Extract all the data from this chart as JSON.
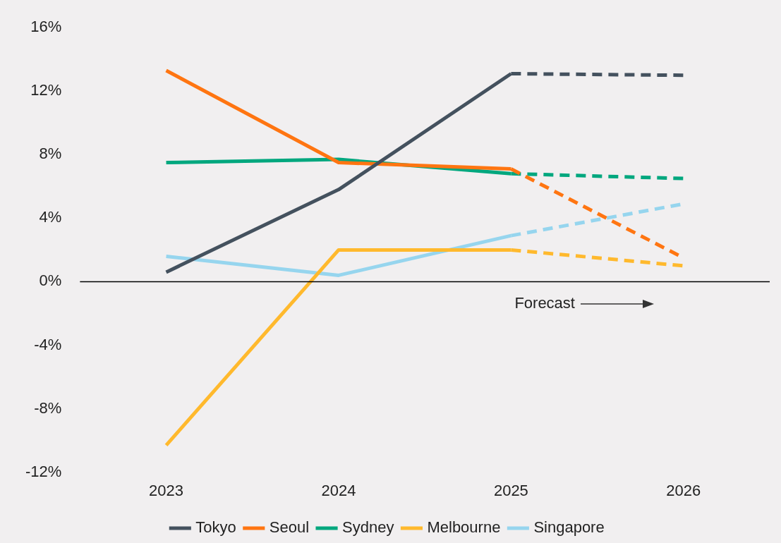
{
  "chart_data": {
    "type": "line",
    "categories": [
      "2023",
      "2024",
      "2025",
      "2026"
    ],
    "series": [
      {
        "name": "Tokyo",
        "color": "#44515e",
        "values": [
          0.6,
          5.8,
          13.1,
          null
        ]
      },
      {
        "name": "Seoul",
        "color": "#ff7511",
        "values": [
          13.3,
          7.5,
          7.1,
          null
        ]
      },
      {
        "name": "Sydney",
        "color": "#00a77e",
        "values": [
          7.5,
          7.7,
          6.8,
          null
        ]
      },
      {
        "name": "Melbourne",
        "color": "#ffb92d",
        "values": [
          -10.3,
          2.0,
          2.0,
          null
        ]
      },
      {
        "name": "Singapore",
        "color": "#96d5ee",
        "values": [
          1.6,
          0.4,
          2.9,
          null
        ]
      },
      {
        "color": "#44515e",
        "line_style": "dashed",
        "values": [
          null,
          null,
          13.1,
          13.0
        ]
      },
      {
        "color": "#ff7511",
        "line_style": "dashed",
        "values": [
          null,
          null,
          7.1,
          1.5
        ]
      },
      {
        "color": "#00a77e",
        "line_style": "dashed",
        "values": [
          null,
          null,
          6.8,
          6.5
        ]
      },
      {
        "color": "#ffb92d",
        "line_style": "dashed",
        "values": [
          null,
          null,
          2.0,
          1.0
        ]
      },
      {
        "color": "#96d5ee",
        "line_style": "dashed",
        "values": [
          null,
          null,
          2.9,
          4.9
        ]
      }
    ],
    "ylim": [
      -12,
      16
    ],
    "yticks": [
      {
        "value": -12,
        "label": "-12%"
      },
      {
        "value": -8,
        "label": "-8%"
      },
      {
        "value": -4,
        "label": "-4%"
      },
      {
        "value": 0,
        "label": "0%"
      },
      {
        "value": 4,
        "label": "4%"
      },
      {
        "value": 8,
        "label": "8%"
      },
      {
        "value": 12,
        "label": "12%"
      },
      {
        "value": 16,
        "label": "16%"
      }
    ],
    "ref_lines": [
      {
        "axis": "y",
        "value": 0,
        "color": "#000000"
      }
    ],
    "annotations": [
      "Forecast"
    ],
    "legend": "bottom",
    "grid": false,
    "marker": "none",
    "line_style": "solid"
  }
}
